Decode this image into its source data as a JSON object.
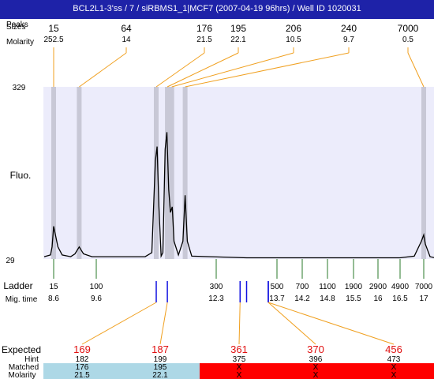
{
  "header": {
    "title": "BCL2L1-3'ss / 7 / siRBMS1_1|MCF7 (2007-04-19 96hrs) / Well ID 1020031",
    "row_labels": [
      "Peaks",
      "Sizes",
      "Molarity"
    ]
  },
  "colors": {
    "title_bar": "#1e22a8",
    "plot_bg": "#ececfb",
    "peak_band": "#c8c8d6",
    "trace": "#000000",
    "orange_line": "#f0a020",
    "ladder_tick": "#2a7a2a",
    "sample_tick": "#1010e0",
    "expected_red": "#e01010",
    "matched_blue": "#add8e6",
    "mismatch_red": "#ff0000"
  },
  "chart_data": {
    "type": "line",
    "y_axis": {
      "label": "Fluo.",
      "max_tick": "329",
      "min_tick": "29",
      "ylim": [
        29,
        329
      ]
    },
    "peaks": [
      {
        "size": "15",
        "molarity": "252.5",
        "time": 8.6
      },
      {
        "size": "64",
        "molarity": "14",
        "time": 9.2
      },
      {
        "size": "176",
        "molarity": "21.5",
        "time": 10.95
      },
      {
        "size": "195",
        "molarity": "22.1",
        "time": 11.2
      },
      {
        "size": "206",
        "molarity": "10.5",
        "time": 11.3
      },
      {
        "size": "240",
        "molarity": "9.7",
        "time": 11.6
      },
      {
        "size": "7000",
        "molarity": "0.5",
        "time": 17.0
      }
    ],
    "trace_points": [
      [
        8.0,
        33
      ],
      [
        8.4,
        36
      ],
      [
        8.5,
        50
      ],
      [
        8.6,
        86
      ],
      [
        8.7,
        50
      ],
      [
        8.8,
        36
      ],
      [
        9.0,
        33
      ],
      [
        9.1,
        38
      ],
      [
        9.2,
        50
      ],
      [
        9.3,
        38
      ],
      [
        9.5,
        33
      ],
      [
        10.7,
        33
      ],
      [
        10.85,
        40
      ],
      [
        10.93,
        200
      ],
      [
        10.97,
        225
      ],
      [
        11.01,
        120
      ],
      [
        11.06,
        34
      ],
      [
        11.1,
        40
      ],
      [
        11.15,
        220
      ],
      [
        11.19,
        250
      ],
      [
        11.23,
        150
      ],
      [
        11.27,
        110
      ],
      [
        11.31,
        120
      ],
      [
        11.35,
        60
      ],
      [
        11.45,
        36
      ],
      [
        11.55,
        60
      ],
      [
        11.6,
        140
      ],
      [
        11.65,
        60
      ],
      [
        11.75,
        34
      ],
      [
        13.0,
        31
      ],
      [
        16.5,
        31
      ],
      [
        16.8,
        34
      ],
      [
        16.95,
        60
      ],
      [
        17.0,
        71
      ],
      [
        17.05,
        55
      ],
      [
        17.2,
        33
      ],
      [
        17.35,
        31
      ]
    ],
    "ladder": {
      "label": "Ladder",
      "time_label": "Mig. time",
      "bands": [
        {
          "size": "15",
          "time": "8.6"
        },
        {
          "size": "100",
          "time": "9.6"
        },
        {
          "size": "300",
          "time": "12.3"
        },
        {
          "size": "500",
          "time": "13.7"
        },
        {
          "size": "700",
          "time": "14.2"
        },
        {
          "size": "1100",
          "time": "14.8"
        },
        {
          "size": "1900",
          "time": "15.5"
        },
        {
          "size": "2900",
          "time": "16"
        },
        {
          "size": "4900",
          "time": "16.5"
        },
        {
          "size": "7000",
          "time": "17"
        }
      ]
    },
    "sample_marks": [
      {
        "time": 10.95,
        "expected_index": 0
      },
      {
        "time": 11.2,
        "expected_index": 1
      },
      {
        "time": 12.85,
        "expected_index": 2
      },
      {
        "time": 13.0,
        "expected_index": -1
      },
      {
        "time": 13.5,
        "expected_index": 3
      },
      {
        "time": 13.5,
        "expected_index": 4
      }
    ],
    "expected": {
      "labels": [
        "Expected",
        "Hint",
        "Matched",
        "Molarity"
      ],
      "items": [
        {
          "expected": "169",
          "hint": "182",
          "matched": "176",
          "molarity": "21.5",
          "status": "matched"
        },
        {
          "expected": "187",
          "hint": "199",
          "matched": "195",
          "molarity": "22.1",
          "status": "matched"
        },
        {
          "expected": "361",
          "hint": "375",
          "matched": "X",
          "molarity": "X",
          "status": "missing"
        },
        {
          "expected": "370",
          "hint": "396",
          "matched": "X",
          "molarity": "X",
          "status": "missing"
        },
        {
          "expected": "456",
          "hint": "473",
          "matched": "X",
          "molarity": "X",
          "status": "missing"
        }
      ]
    }
  }
}
